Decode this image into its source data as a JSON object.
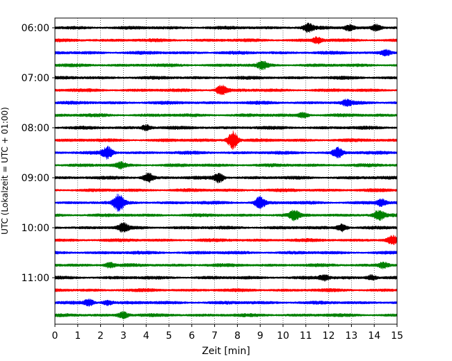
{
  "chart_data": {
    "type": "line",
    "title": "",
    "xlabel": "Zeit  [min]",
    "ylabel": "UTC (Lokalzeit = UTC + 01:00)",
    "xlim": [
      0,
      15
    ],
    "x_ticks": [
      0,
      1,
      2,
      3,
      4,
      5,
      6,
      7,
      8,
      9,
      10,
      11,
      12,
      13,
      14,
      15
    ],
    "x_tick_labels": [
      "0",
      "1",
      "2",
      "3",
      "4",
      "5",
      "6",
      "7",
      "8",
      "9",
      "10",
      "11",
      "12",
      "13",
      "14",
      "15"
    ],
    "y_tick_labels": [
      "06:00",
      "07:00",
      "08:00",
      "09:00",
      "10:00",
      "11:00"
    ],
    "grid": "vertical dotted at each minute",
    "colors": [
      "#000000",
      "#ff0000",
      "#0000ff",
      "#008000"
    ],
    "series": [
      {
        "start": "06:00",
        "color": "#000000",
        "events": [
          {
            "t": 11.1,
            "amp": 1.6
          },
          {
            "t": 12.9,
            "amp": 1.2
          },
          {
            "t": 14.1,
            "amp": 1.3
          }
        ]
      },
      {
        "start": "06:15",
        "color": "#ff0000",
        "events": [
          {
            "t": 11.5,
            "amp": 1.2
          }
        ]
      },
      {
        "start": "06:30",
        "color": "#0000ff",
        "events": [
          {
            "t": 14.5,
            "amp": 1.2
          }
        ]
      },
      {
        "start": "06:45",
        "color": "#008000",
        "events": [
          {
            "t": 9.1,
            "amp": 1.5
          }
        ]
      },
      {
        "start": "07:00",
        "color": "#000000",
        "events": []
      },
      {
        "start": "07:15",
        "color": "#ff0000",
        "events": [
          {
            "t": 7.3,
            "amp": 2.2
          }
        ]
      },
      {
        "start": "07:30",
        "color": "#0000ff",
        "events": [
          {
            "t": 12.8,
            "amp": 1.1
          }
        ]
      },
      {
        "start": "07:45",
        "color": "#008000",
        "events": [
          {
            "t": 10.9,
            "amp": 1.1
          }
        ]
      },
      {
        "start": "08:00",
        "color": "#000000",
        "events": [
          {
            "t": 4.0,
            "amp": 1.1
          }
        ]
      },
      {
        "start": "08:15",
        "color": "#ff0000",
        "events": [
          {
            "t": 7.8,
            "amp": 4.0
          }
        ]
      },
      {
        "start": "08:30",
        "color": "#0000ff",
        "events": [
          {
            "t": 2.3,
            "amp": 2.5
          },
          {
            "t": 12.4,
            "amp": 2.0
          }
        ]
      },
      {
        "start": "08:45",
        "color": "#008000",
        "events": [
          {
            "t": 2.9,
            "amp": 1.1
          }
        ]
      },
      {
        "start": "09:00",
        "color": "#000000",
        "events": [
          {
            "t": 4.1,
            "amp": 1.8
          },
          {
            "t": 7.2,
            "amp": 2.0
          }
        ]
      },
      {
        "start": "09:15",
        "color": "#ff0000",
        "events": []
      },
      {
        "start": "09:30",
        "color": "#0000ff",
        "events": [
          {
            "t": 2.8,
            "amp": 3.5
          },
          {
            "t": 9.0,
            "amp": 2.5
          },
          {
            "t": 14.3,
            "amp": 1.5
          }
        ]
      },
      {
        "start": "09:45",
        "color": "#008000",
        "events": [
          {
            "t": 10.5,
            "amp": 1.8
          },
          {
            "t": 14.2,
            "amp": 2.0
          }
        ]
      },
      {
        "start": "10:00",
        "color": "#000000",
        "events": [
          {
            "t": 3.0,
            "amp": 1.8
          },
          {
            "t": 12.6,
            "amp": 1.6
          }
        ]
      },
      {
        "start": "10:15",
        "color": "#ff0000",
        "events": [
          {
            "t": 14.8,
            "amp": 1.8
          }
        ]
      },
      {
        "start": "10:30",
        "color": "#0000ff",
        "events": []
      },
      {
        "start": "10:45",
        "color": "#008000",
        "events": [
          {
            "t": 2.4,
            "amp": 1.1
          },
          {
            "t": 14.4,
            "amp": 1.2
          }
        ]
      },
      {
        "start": "11:00",
        "color": "#000000",
        "events": [
          {
            "t": 11.8,
            "amp": 1.1
          },
          {
            "t": 13.9,
            "amp": 1.1
          }
        ]
      },
      {
        "start": "11:15",
        "color": "#ff0000",
        "events": []
      },
      {
        "start": "11:30",
        "color": "#0000ff",
        "events": [
          {
            "t": 1.5,
            "amp": 1.3
          },
          {
            "t": 2.3,
            "amp": 1.0
          }
        ]
      },
      {
        "start": "11:45",
        "color": "#008000",
        "events": [
          {
            "t": 3.0,
            "amp": 1.4
          }
        ]
      }
    ]
  }
}
